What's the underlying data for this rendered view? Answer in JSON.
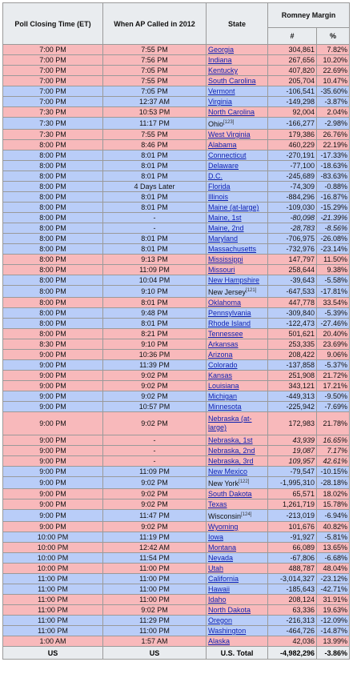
{
  "headers": {
    "poll_closing": "Poll Closing Time (ET)",
    "ap_called": "When AP Called in 2012",
    "state": "State",
    "margin": "Romney Margin",
    "num": "#",
    "pct": "%"
  },
  "colors": {
    "red_row": "#f8b9bb",
    "blue_row": "#b9cdf8",
    "link": "#0b1fb0"
  },
  "rows": [
    {
      "time": "7:00 PM",
      "called": "7:55 PM",
      "state": "Georgia",
      "link": true,
      "num": "304,861",
      "pct": "7.82%",
      "color": "r"
    },
    {
      "time": "7:00 PM",
      "called": "7:56 PM",
      "state": "Indiana",
      "link": true,
      "num": "267,656",
      "pct": "10.20%",
      "color": "r"
    },
    {
      "time": "7:00 PM",
      "called": "7:05 PM",
      "state": "Kentucky",
      "link": true,
      "num": "407,820",
      "pct": "22.69%",
      "color": "r"
    },
    {
      "time": "7:00 PM",
      "called": "7:55 PM",
      "state": "South Carolina",
      "link": true,
      "num": "205,704",
      "pct": "10.47%",
      "color": "r"
    },
    {
      "time": "7:00 PM",
      "called": "7:05 PM",
      "state": "Vermont",
      "link": true,
      "num": "-106,541",
      "pct": "-35.60%",
      "color": "b"
    },
    {
      "time": "7:00 PM",
      "called": "12:37 AM",
      "state": "Virginia",
      "link": true,
      "num": "-149,298",
      "pct": "-3.87%",
      "color": "b"
    },
    {
      "time": "7:30 PM",
      "called": "10:53 PM",
      "state": "North Carolina",
      "link": true,
      "num": "92,004",
      "pct": "2.04%",
      "color": "r"
    },
    {
      "time": "7:30 PM",
      "called": "11:17 PM",
      "state": "Ohio",
      "sup": "[123]",
      "link": false,
      "num": "-166,277",
      "pct": "-2.98%",
      "color": "b"
    },
    {
      "time": "7:30 PM",
      "called": "7:55 PM",
      "state": "West Virginia",
      "link": true,
      "num": "179,386",
      "pct": "26.76%",
      "color": "r"
    },
    {
      "time": "8:00 PM",
      "called": "8:46 PM",
      "state": "Alabama",
      "link": true,
      "num": "460,229",
      "pct": "22.19%",
      "color": "r"
    },
    {
      "time": "8:00 PM",
      "called": "8:01 PM",
      "state": "Connecticut",
      "link": true,
      "num": "-270,191",
      "pct": "-17.33%",
      "color": "b"
    },
    {
      "time": "8:00 PM",
      "called": "8:01 PM",
      "state": "Delaware",
      "link": true,
      "num": "-77,100",
      "pct": "-18.63%",
      "color": "b"
    },
    {
      "time": "8:00 PM",
      "called": "8:01 PM",
      "state": "D.C.",
      "link": true,
      "num": "-245,689",
      "pct": "-83.63%",
      "color": "b"
    },
    {
      "time": "8:00 PM",
      "called": "4 Days Later",
      "state": "Florida",
      "link": true,
      "num": "-74,309",
      "pct": "-0.88%",
      "color": "b"
    },
    {
      "time": "8:00 PM",
      "called": "8:01 PM",
      "state": "Illinois",
      "link": true,
      "num": "-884,296",
      "pct": "-16.87%",
      "color": "b"
    },
    {
      "time": "8:00 PM",
      "called": "8:01 PM",
      "state": "Maine (at-large)",
      "link": true,
      "num": "-109,030",
      "pct": "-15.29%",
      "color": "b"
    },
    {
      "time": "8:00 PM",
      "called": "-",
      "state": "Maine, 1st",
      "link": true,
      "num": "-80,098",
      "pct": "-21.39%",
      "color": "b",
      "italic": true
    },
    {
      "time": "8:00 PM",
      "called": "-",
      "state": "Maine, 2nd",
      "link": true,
      "num": "-28,783",
      "pct": "-8.56%",
      "color": "b",
      "italic": true
    },
    {
      "time": "8:00 PM",
      "called": "8:01 PM",
      "state": "Maryland",
      "link": true,
      "num": "-706,975",
      "pct": "-26.08%",
      "color": "b"
    },
    {
      "time": "8:00 PM",
      "called": "8:01 PM",
      "state": "Massachusetts",
      "link": true,
      "num": "-732,976",
      "pct": "-23.14%",
      "color": "b"
    },
    {
      "time": "8:00 PM",
      "called": "9:13 PM",
      "state": "Mississippi",
      "link": true,
      "num": "147,797",
      "pct": "11.50%",
      "color": "r"
    },
    {
      "time": "8:00 PM",
      "called": "11:09 PM",
      "state": "Missouri",
      "link": true,
      "num": "258,644",
      "pct": "9.38%",
      "color": "r"
    },
    {
      "time": "8:00 PM",
      "called": "10:04 PM",
      "state": "New Hampshire",
      "link": true,
      "num": "-39,643",
      "pct": "-5.58%",
      "color": "b"
    },
    {
      "time": "8:00 PM",
      "called": "9:10 PM",
      "state": "New Jersey",
      "sup": "[121]",
      "link": false,
      "num": "-647,533",
      "pct": "-17.81%",
      "color": "b"
    },
    {
      "time": "8:00 PM",
      "called": "8:01 PM",
      "state": "Oklahoma",
      "link": true,
      "num": "447,778",
      "pct": "33.54%",
      "color": "r"
    },
    {
      "time": "8:00 PM",
      "called": "9:48 PM",
      "state": "Pennsylvania",
      "link": true,
      "num": "-309,840",
      "pct": "-5.39%",
      "color": "b"
    },
    {
      "time": "8:00 PM",
      "called": "8:01 PM",
      "state": "Rhode Island",
      "link": true,
      "num": "-122,473",
      "pct": "-27.46%",
      "color": "b"
    },
    {
      "time": "8:00 PM",
      "called": "8:21 PM",
      "state": "Tennessee",
      "link": true,
      "num": "501,621",
      "pct": "20.40%",
      "color": "r"
    },
    {
      "time": "8:30 PM",
      "called": "9:10 PM",
      "state": "Arkansas",
      "link": true,
      "num": "253,335",
      "pct": "23.69%",
      "color": "r"
    },
    {
      "time": "9:00 PM",
      "called": "10:36 PM",
      "state": "Arizona",
      "link": true,
      "num": "208,422",
      "pct": "9.06%",
      "color": "r"
    },
    {
      "time": "9:00 PM",
      "called": "11:39 PM",
      "state": "Colorado",
      "link": true,
      "num": "-137,858",
      "pct": "-5.37%",
      "color": "b"
    },
    {
      "time": "9:00 PM",
      "called": "9:02 PM",
      "state": "Kansas",
      "link": true,
      "num": "251,908",
      "pct": "21.72%",
      "color": "r"
    },
    {
      "time": "9:00 PM",
      "called": "9:02 PM",
      "state": "Louisiana",
      "link": true,
      "num": "343,121",
      "pct": "17.21%",
      "color": "r"
    },
    {
      "time": "9:00 PM",
      "called": "9:02 PM",
      "state": "Michigan",
      "link": true,
      "num": "-449,313",
      "pct": "-9.50%",
      "color": "b"
    },
    {
      "time": "9:00 PM",
      "called": "10:57 PM",
      "state": "Minnesota",
      "link": true,
      "num": "-225,942",
      "pct": "-7.69%",
      "color": "b"
    },
    {
      "time": "9:00 PM",
      "called": "9:02 PM",
      "state": "Nebraska (at-large)",
      "link": true,
      "num": "172,983",
      "pct": "21.78%",
      "color": "r",
      "tall": true
    },
    {
      "time": "9:00 PM",
      "called": "-",
      "state": "Nebraska, 1st",
      "link": true,
      "num": "43,939",
      "pct": "16.65%",
      "color": "r",
      "italic": true
    },
    {
      "time": "9:00 PM",
      "called": "-",
      "state": "Nebraska, 2nd",
      "link": true,
      "num": "19,087",
      "pct": "7.17%",
      "color": "r",
      "italic": true
    },
    {
      "time": "9:00 PM",
      "called": "-",
      "state": "Nebraska, 3rd",
      "link": true,
      "num": "109,957",
      "pct": "42.61%",
      "color": "r",
      "italic": true
    },
    {
      "time": "9:00 PM",
      "called": "11:09 PM",
      "state": "New Mexico",
      "link": true,
      "num": "-79,547",
      "pct": "-10.15%",
      "color": "b"
    },
    {
      "time": "9:00 PM",
      "called": "9:02 PM",
      "state": "New York",
      "sup": "[122]",
      "link": false,
      "num": "-1,995,310",
      "pct": "-28.18%",
      "color": "b"
    },
    {
      "time": "9:00 PM",
      "called": "9:02 PM",
      "state": "South Dakota",
      "link": true,
      "num": "65,571",
      "pct": "18.02%",
      "color": "r"
    },
    {
      "time": "9:00 PM",
      "called": "9:02 PM",
      "state": "Texas",
      "link": true,
      "num": "1,261,719",
      "pct": "15.78%",
      "color": "r"
    },
    {
      "time": "9:00 PM",
      "called": "11:47 PM",
      "state": "Wisconsin",
      "sup": "[124]",
      "link": false,
      "num": "-213,019",
      "pct": "-6.94%",
      "color": "b"
    },
    {
      "time": "9:00 PM",
      "called": "9:02 PM",
      "state": "Wyoming",
      "link": true,
      "num": "101,676",
      "pct": "40.82%",
      "color": "r"
    },
    {
      "time": "10:00 PM",
      "called": "11:19 PM",
      "state": "Iowa",
      "link": true,
      "num": "-91,927",
      "pct": "-5.81%",
      "color": "b"
    },
    {
      "time": "10:00 PM",
      "called": "12:42 AM",
      "state": "Montana",
      "link": true,
      "num": "66,089",
      "pct": "13.65%",
      "color": "r"
    },
    {
      "time": "10:00 PM",
      "called": "11:54 PM",
      "state": "Nevada",
      "link": true,
      "num": "-67,806",
      "pct": "-6.68%",
      "color": "b"
    },
    {
      "time": "10:00 PM",
      "called": "11:00 PM",
      "state": "Utah",
      "link": true,
      "num": "488,787",
      "pct": "48.04%",
      "color": "r"
    },
    {
      "time": "11:00 PM",
      "called": "11:00 PM",
      "state": "California",
      "link": true,
      "num": "-3,014,327",
      "pct": "-23.12%",
      "color": "b"
    },
    {
      "time": "11:00 PM",
      "called": "11:00 PM",
      "state": "Hawaii",
      "link": true,
      "num": "-185,643",
      "pct": "-42.71%",
      "color": "b"
    },
    {
      "time": "11:00 PM",
      "called": "11:00 PM",
      "state": "Idaho",
      "link": true,
      "num": "208,124",
      "pct": "31.91%",
      "color": "r"
    },
    {
      "time": "11:00 PM",
      "called": "9:02 PM",
      "state": "North Dakota",
      "link": true,
      "num": "63,336",
      "pct": "19.63%",
      "color": "r"
    },
    {
      "time": "11:00 PM",
      "called": "11:29 PM",
      "state": "Oregon",
      "link": true,
      "num": "-216,313",
      "pct": "-12.09%",
      "color": "b"
    },
    {
      "time": "11:00 PM",
      "called": "11:00 PM",
      "state": "Washington",
      "link": true,
      "num": "-464,726",
      "pct": "-14.87%",
      "color": "b"
    },
    {
      "time": "1:00 AM",
      "called": "1:57 AM",
      "state": "Alaska",
      "link": true,
      "num": "42,036",
      "pct": "13.99%",
      "color": "r"
    }
  ],
  "footer": {
    "c1": "US",
    "c2": "US",
    "c3": "U.S. Total",
    "num": "-4,982,296",
    "pct": "-3.86%"
  }
}
